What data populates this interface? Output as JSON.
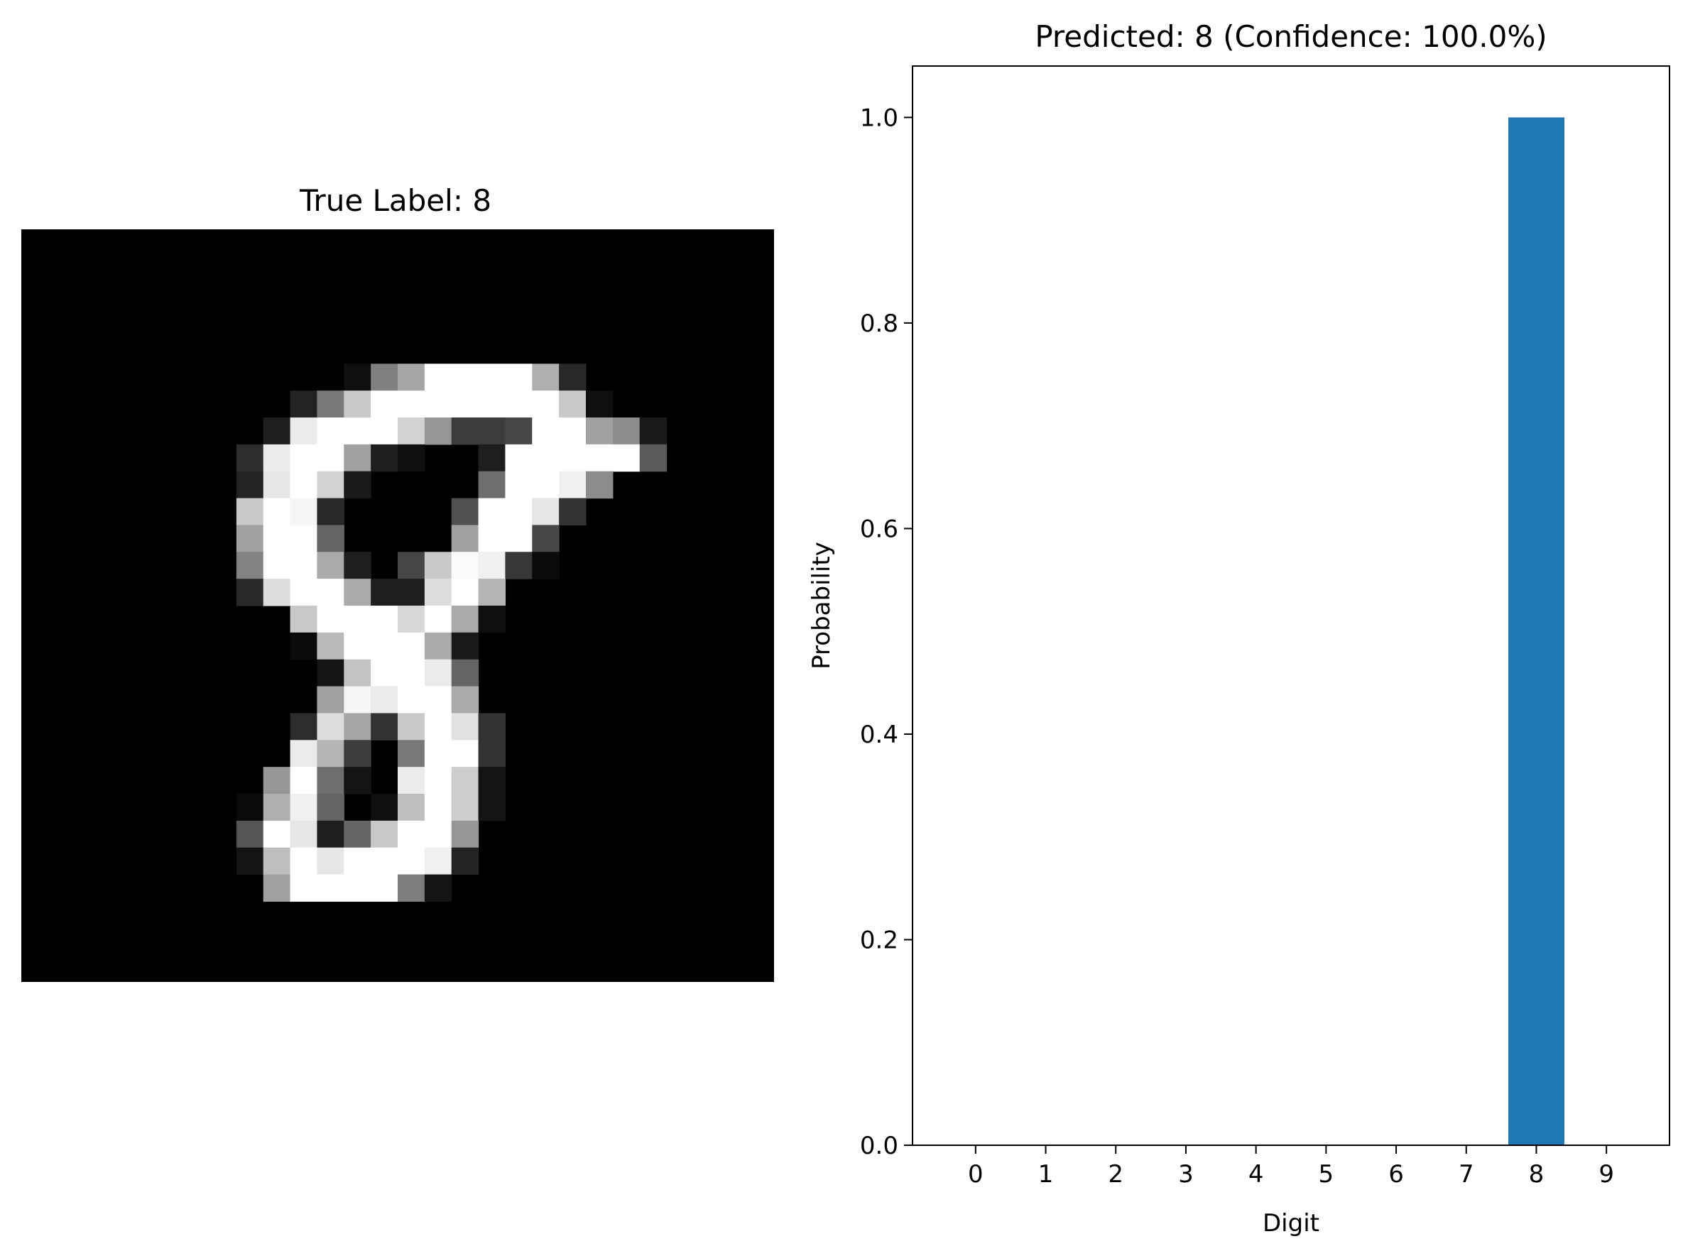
{
  "image_panel": {
    "title": "True Label: 8",
    "grid_size": 28,
    "grid_offset": [
      8,
      5
    ],
    "pixels": [
      [
        0,
        0,
        0,
        0,
        15,
        128,
        165,
        255,
        255,
        255,
        255,
        175,
        40,
        0,
        0,
        0
      ],
      [
        0,
        0,
        35,
        120,
        200,
        255,
        255,
        255,
        255,
        255,
        255,
        255,
        200,
        15,
        0,
        0
      ],
      [
        0,
        30,
        235,
        255,
        255,
        255,
        210,
        150,
        60,
        60,
        70,
        255,
        255,
        160,
        140,
        25
      ],
      [
        45,
        235,
        255,
        255,
        160,
        30,
        15,
        0,
        0,
        30,
        255,
        255,
        255,
        255,
        255,
        90
      ],
      [
        35,
        230,
        255,
        210,
        25,
        0,
        0,
        0,
        0,
        110,
        255,
        255,
        240,
        140,
        0,
        0
      ],
      [
        200,
        255,
        245,
        40,
        0,
        0,
        0,
        0,
        80,
        255,
        255,
        230,
        50,
        0,
        0,
        0
      ],
      [
        160,
        255,
        255,
        100,
        0,
        0,
        0,
        0,
        160,
        255,
        255,
        70,
        0,
        0,
        0,
        0
      ],
      [
        130,
        255,
        255,
        170,
        30,
        0,
        70,
        200,
        250,
        240,
        55,
        10,
        0,
        0,
        0,
        0
      ],
      [
        40,
        220,
        255,
        255,
        170,
        30,
        30,
        220,
        255,
        180,
        0,
        0,
        0,
        0,
        0,
        0
      ],
      [
        0,
        0,
        200,
        255,
        255,
        255,
        215,
        255,
        170,
        15,
        0,
        0,
        0,
        0,
        0,
        0
      ],
      [
        0,
        0,
        10,
        185,
        255,
        255,
        255,
        170,
        25,
        0,
        0,
        0,
        0,
        0,
        0,
        0
      ],
      [
        0,
        0,
        0,
        20,
        195,
        255,
        255,
        235,
        100,
        0,
        0,
        0,
        0,
        0,
        0,
        0
      ],
      [
        0,
        0,
        0,
        160,
        245,
        235,
        255,
        255,
        170,
        0,
        0,
        0,
        0,
        0,
        0,
        0
      ],
      [
        0,
        0,
        45,
        220,
        165,
        50,
        200,
        255,
        225,
        50,
        0,
        0,
        0,
        0,
        0,
        0
      ],
      [
        0,
        0,
        235,
        180,
        60,
        0,
        120,
        255,
        255,
        50,
        0,
        0,
        0,
        0,
        0,
        0
      ],
      [
        0,
        150,
        255,
        110,
        20,
        0,
        235,
        255,
        205,
        20,
        0,
        0,
        0,
        0,
        0,
        0
      ],
      [
        10,
        175,
        240,
        100,
        0,
        15,
        190,
        255,
        205,
        20,
        0,
        0,
        0,
        0,
        0,
        0
      ],
      [
        85,
        255,
        230,
        30,
        100,
        200,
        255,
        255,
        150,
        0,
        0,
        0,
        0,
        0,
        0,
        0
      ],
      [
        20,
        190,
        255,
        230,
        255,
        255,
        255,
        240,
        35,
        0,
        0,
        0,
        0,
        0,
        0,
        0
      ],
      [
        0,
        160,
        255,
        255,
        255,
        255,
        125,
        20,
        0,
        0,
        0,
        0,
        0,
        0,
        0,
        0
      ]
    ]
  },
  "chart_data": {
    "type": "bar",
    "title": "Predicted: 8 (Confidence: 100.0%)",
    "xlabel": "Digit",
    "ylabel": "Probability",
    "categories": [
      "0",
      "1",
      "2",
      "3",
      "4",
      "5",
      "6",
      "7",
      "8",
      "9"
    ],
    "values": [
      0,
      0,
      0,
      0,
      0,
      0,
      0,
      0,
      1.0,
      0
    ],
    "ylim": [
      0,
      1.05
    ],
    "yticks": [
      0.0,
      0.2,
      0.4,
      0.6,
      0.8,
      1.0
    ],
    "ytick_labels": [
      "0.0",
      "0.2",
      "0.4",
      "0.6",
      "0.8",
      "1.0"
    ],
    "bar_color": "#1f77b4",
    "grid": false,
    "legend": false
  }
}
